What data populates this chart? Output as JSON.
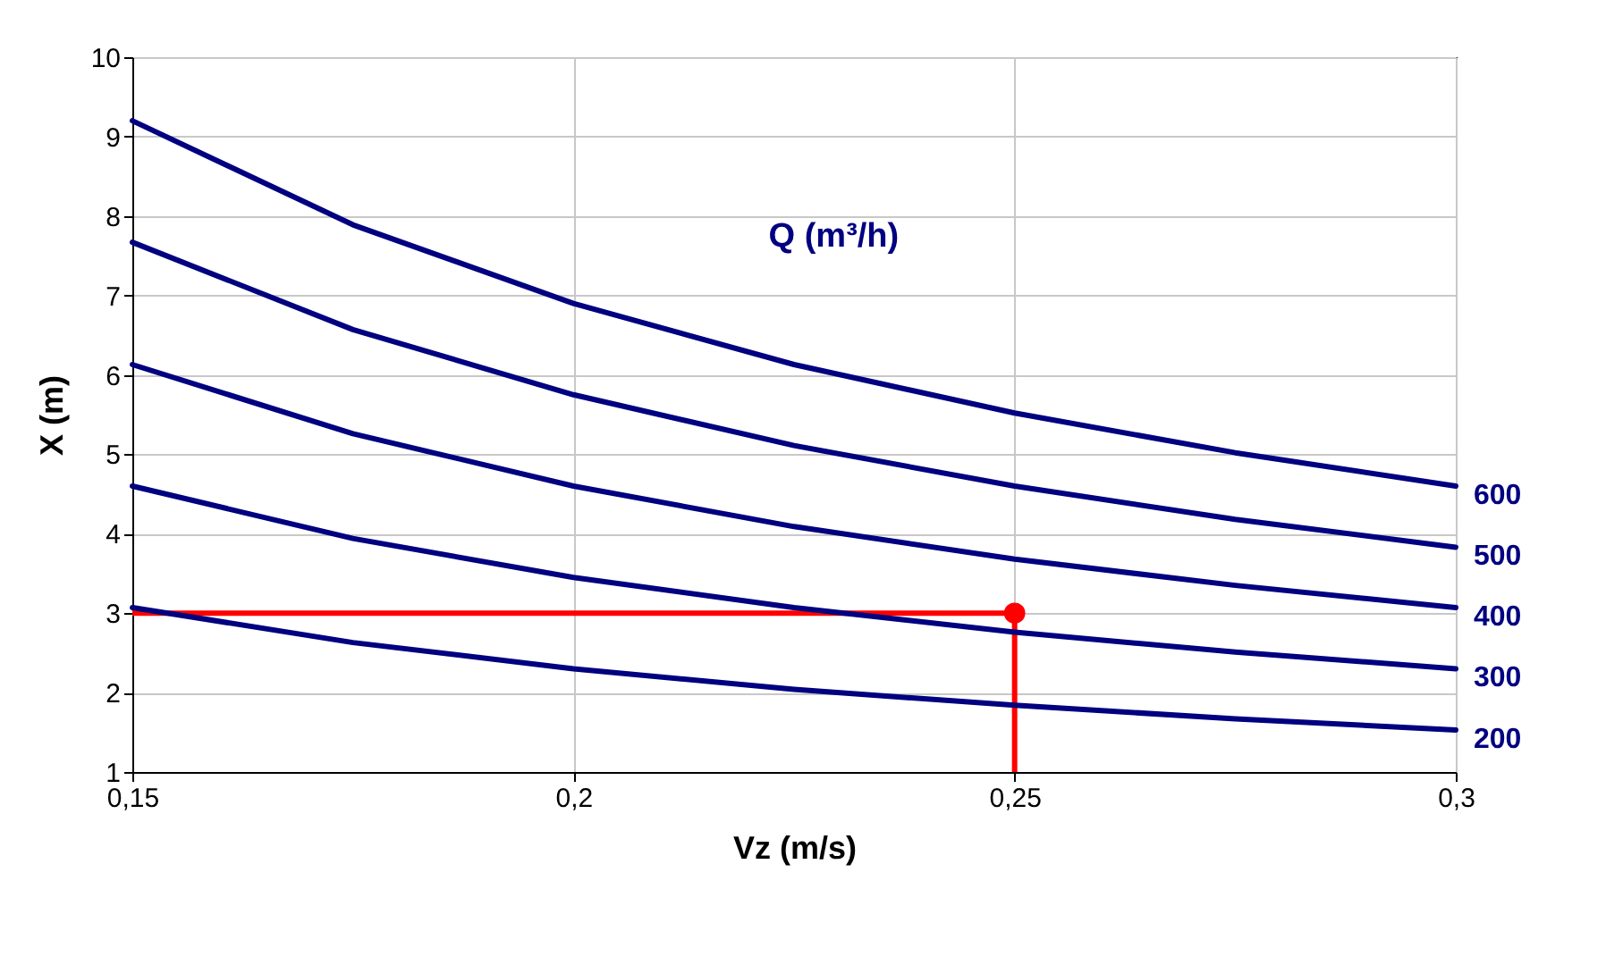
{
  "chart_data": {
    "type": "line",
    "xlabel": "Vz (m/s)",
    "ylabel": "X (m)",
    "annotations": [
      "Q (m³/h)"
    ],
    "x": [
      0.15,
      0.175,
      0.2,
      0.225,
      0.25,
      0.275,
      0.3
    ],
    "xlim": [
      0.15,
      0.3
    ],
    "xticks": [
      {
        "value": 0.15,
        "label": "0,15"
      },
      {
        "value": 0.2,
        "label": "0,2"
      },
      {
        "value": 0.25,
        "label": "0,25"
      },
      {
        "value": 0.3,
        "label": "0,3"
      }
    ],
    "ylim": [
      1,
      10
    ],
    "yticks": [
      1,
      2,
      3,
      4,
      5,
      6,
      7,
      8,
      9,
      10
    ],
    "grid": true,
    "marker": "none",
    "line_style": "solid",
    "series": [
      {
        "name": "600",
        "color": "#000080",
        "values": [
          9.2,
          7.89,
          6.9,
          6.13,
          5.52,
          5.02,
          4.6
        ]
      },
      {
        "name": "500",
        "color": "#000080",
        "values": [
          7.67,
          6.57,
          5.75,
          5.11,
          4.6,
          4.18,
          3.83
        ]
      },
      {
        "name": "400",
        "color": "#000080",
        "values": [
          6.13,
          5.26,
          4.6,
          4.09,
          3.68,
          3.35,
          3.07
        ]
      },
      {
        "name": "300",
        "color": "#000080",
        "values": [
          4.6,
          3.94,
          3.45,
          3.07,
          2.76,
          2.51,
          2.3
        ]
      },
      {
        "name": "200",
        "color": "#000080",
        "values": [
          3.07,
          2.63,
          2.3,
          2.04,
          1.84,
          1.67,
          1.53
        ]
      },
      {
        "type": "scatter",
        "color": "#ff0000",
        "marker": "circle",
        "values": [
          null,
          null,
          null,
          null,
          3,
          null,
          null
        ]
      }
    ],
    "ref_lines": [
      {
        "axis": "y",
        "value": 3,
        "color": "#ff0000"
      },
      {
        "axis": "x",
        "value": 0.25,
        "color": "#ff0000"
      }
    ]
  }
}
